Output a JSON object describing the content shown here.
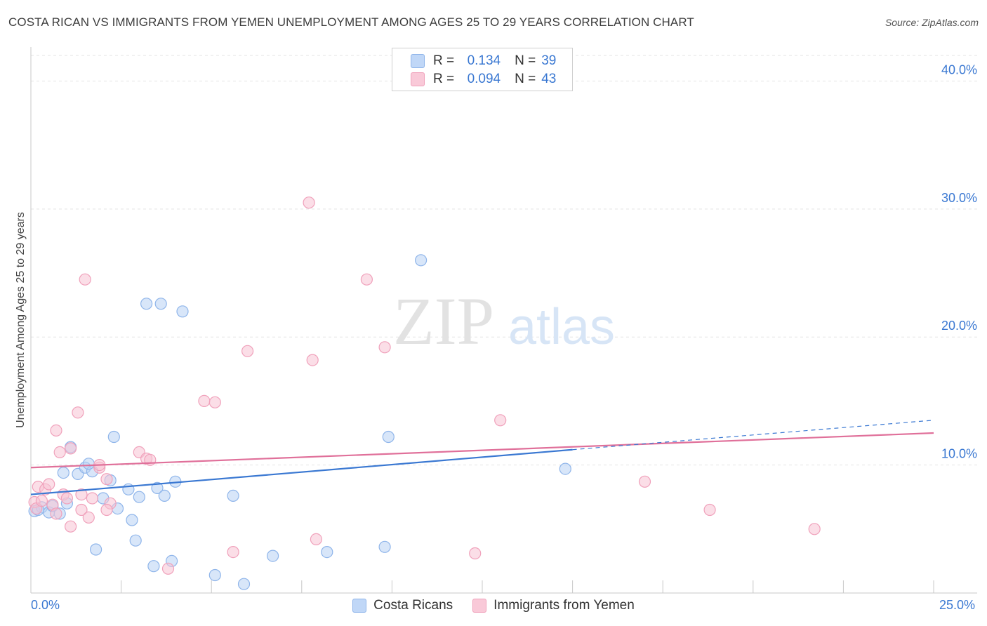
{
  "header": {
    "title": "COSTA RICAN VS IMMIGRANTS FROM YEMEN UNEMPLOYMENT AMONG AGES 25 TO 29 YEARS CORRELATION CHART",
    "source": "Source: ZipAtlas.com"
  },
  "watermark": {
    "zip": "ZIP",
    "atlas": "atlas"
  },
  "legend": {
    "r_label": "R =",
    "n_label": "N =",
    "series1": {
      "r": "0.134",
      "n": "39"
    },
    "series2": {
      "r": "0.094",
      "n": "43"
    }
  },
  "bottom_legend": {
    "series1": "Costa Ricans",
    "series2": "Immigrants from Yemen"
  },
  "x_axis_labels": {
    "left": "0.0%",
    "right": "25.0%"
  },
  "chart_data": {
    "type": "scatter",
    "title": "COSTA RICAN VS IMMIGRANTS FROM YEMEN UNEMPLOYMENT AMONG AGES 25 TO 29 YEARS CORRELATION CHART",
    "xlabel": "",
    "ylabel": "Unemployment Among Ages 25 to 29 years",
    "xlim": [
      0,
      25
    ],
    "ylim": [
      0,
      42
    ],
    "y_ticks": [
      10,
      20,
      30,
      40
    ],
    "y_tick_labels": [
      "10.0%",
      "20.0%",
      "30.0%",
      "40.0%"
    ],
    "grid": true,
    "legend_position": "top-center",
    "colors": {
      "series1": "#3a78d2",
      "series2": "#e0709a",
      "series1_fill": "#b8d1f4",
      "series2_fill": "#f8c3d4"
    },
    "series": [
      {
        "name": "Costa Ricans",
        "r": 0.134,
        "n": 39,
        "trend": {
          "x": [
            0,
            15
          ],
          "y": [
            7.7,
            11.2
          ]
        },
        "trend_dashed": {
          "x": [
            15,
            25
          ],
          "y": [
            11.2,
            13.5
          ]
        },
        "points": [
          [
            0.1,
            6.4
          ],
          [
            0.3,
            6.7
          ],
          [
            0.5,
            6.3
          ],
          [
            0.6,
            6.8
          ],
          [
            0.8,
            6.2
          ],
          [
            1.0,
            7.0
          ],
          [
            0.9,
            9.4
          ],
          [
            1.3,
            9.3
          ],
          [
            1.5,
            9.8
          ],
          [
            1.7,
            9.5
          ],
          [
            1.6,
            10.1
          ],
          [
            1.1,
            11.4
          ],
          [
            2.2,
            8.8
          ],
          [
            2.0,
            7.4
          ],
          [
            2.4,
            6.6
          ],
          [
            2.7,
            8.1
          ],
          [
            3.0,
            7.5
          ],
          [
            2.8,
            5.7
          ],
          [
            3.5,
            8.2
          ],
          [
            3.7,
            7.6
          ],
          [
            4.0,
            8.7
          ],
          [
            5.6,
            7.6
          ],
          [
            2.3,
            12.2
          ],
          [
            3.2,
            22.6
          ],
          [
            3.6,
            22.6
          ],
          [
            4.2,
            22.0
          ],
          [
            1.8,
            3.4
          ],
          [
            2.9,
            4.1
          ],
          [
            3.4,
            2.1
          ],
          [
            3.9,
            2.5
          ],
          [
            5.1,
            1.4
          ],
          [
            5.9,
            0.7
          ],
          [
            6.7,
            2.9
          ],
          [
            8.2,
            3.2
          ],
          [
            9.8,
            3.6
          ],
          [
            9.9,
            12.2
          ],
          [
            10.8,
            26.0
          ],
          [
            14.8,
            9.7
          ],
          [
            0.2,
            6.5
          ]
        ]
      },
      {
        "name": "Immigrants from Yemen",
        "r": 0.094,
        "n": 43,
        "trend": {
          "x": [
            0,
            25
          ],
          "y": [
            9.8,
            12.5
          ]
        },
        "points": [
          [
            0.1,
            7.1
          ],
          [
            0.2,
            8.3
          ],
          [
            0.4,
            8.1
          ],
          [
            0.5,
            8.5
          ],
          [
            0.6,
            6.9
          ],
          [
            0.7,
            6.2
          ],
          [
            0.9,
            7.7
          ],
          [
            1.0,
            7.4
          ],
          [
            1.1,
            5.2
          ],
          [
            0.8,
            11.0
          ],
          [
            1.1,
            11.3
          ],
          [
            0.7,
            12.7
          ],
          [
            1.3,
            14.1
          ],
          [
            1.4,
            7.7
          ],
          [
            1.4,
            6.5
          ],
          [
            1.6,
            5.9
          ],
          [
            1.7,
            7.4
          ],
          [
            1.9,
            9.8
          ],
          [
            1.9,
            10.0
          ],
          [
            2.1,
            8.9
          ],
          [
            2.2,
            7.0
          ],
          [
            2.1,
            6.5
          ],
          [
            1.5,
            24.5
          ],
          [
            3.0,
            11.0
          ],
          [
            3.2,
            10.5
          ],
          [
            3.3,
            10.4
          ],
          [
            3.8,
            1.9
          ],
          [
            4.8,
            15.0
          ],
          [
            5.1,
            14.9
          ],
          [
            5.6,
            3.2
          ],
          [
            6.0,
            18.9
          ],
          [
            7.7,
            30.5
          ],
          [
            7.8,
            18.2
          ],
          [
            7.9,
            4.2
          ],
          [
            9.3,
            24.5
          ],
          [
            9.8,
            19.2
          ],
          [
            12.3,
            3.1
          ],
          [
            13.0,
            13.5
          ],
          [
            17.0,
            8.7
          ],
          [
            18.8,
            6.5
          ],
          [
            21.7,
            5.0
          ],
          [
            0.15,
            6.6
          ],
          [
            0.3,
            7.2
          ]
        ]
      }
    ]
  }
}
